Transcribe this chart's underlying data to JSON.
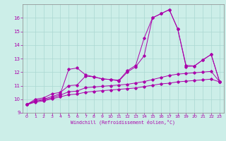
{
  "xlabel": "Windchill (Refroidissement éolien,°C)",
  "bg_color": "#cceee8",
  "grid_color": "#aad8d2",
  "line_color": "#aa00aa",
  "spine_color": "#888888",
  "xlim": [
    -0.5,
    23.5
  ],
  "ylim": [
    9,
    17.0
  ],
  "xticks": [
    0,
    1,
    2,
    3,
    4,
    5,
    6,
    7,
    8,
    9,
    10,
    11,
    12,
    13,
    14,
    15,
    16,
    17,
    18,
    19,
    20,
    21,
    22,
    23
  ],
  "yticks": [
    9,
    10,
    11,
    12,
    13,
    14,
    15,
    16
  ],
  "series1_x": [
    0,
    1,
    2,
    3,
    4,
    5,
    6,
    7,
    8,
    9,
    10,
    11,
    12,
    13,
    14,
    15,
    16,
    17,
    18,
    19,
    20,
    21,
    22,
    23
  ],
  "series1_y": [
    9.6,
    10.0,
    10.1,
    10.4,
    10.5,
    11.0,
    11.05,
    11.7,
    11.65,
    11.5,
    11.45,
    11.4,
    12.1,
    12.5,
    14.5,
    16.0,
    16.3,
    16.6,
    15.2,
    12.5,
    12.45,
    12.9,
    13.3,
    11.3
  ],
  "series2_x": [
    0,
    1,
    2,
    3,
    4,
    5,
    6,
    7,
    8,
    9,
    10,
    11,
    12,
    13,
    14,
    15,
    16,
    17,
    18,
    19,
    20,
    21,
    22,
    23
  ],
  "series2_y": [
    9.6,
    9.9,
    10.0,
    10.2,
    10.4,
    12.2,
    12.3,
    11.8,
    11.65,
    11.5,
    11.45,
    11.35,
    12.0,
    12.4,
    13.2,
    16.0,
    16.3,
    16.6,
    15.2,
    12.4,
    12.45,
    12.9,
    13.3,
    11.3
  ],
  "series3_x": [
    0,
    1,
    2,
    3,
    4,
    5,
    6,
    7,
    8,
    9,
    10,
    11,
    12,
    13,
    14,
    15,
    16,
    17,
    18,
    19,
    20,
    21,
    22,
    23
  ],
  "series3_y": [
    9.6,
    9.85,
    9.95,
    10.1,
    10.3,
    10.55,
    10.6,
    10.85,
    10.9,
    10.95,
    11.0,
    11.05,
    11.1,
    11.2,
    11.3,
    11.45,
    11.6,
    11.75,
    11.85,
    11.9,
    11.95,
    12.0,
    12.05,
    11.3
  ],
  "series4_x": [
    0,
    1,
    2,
    3,
    4,
    5,
    6,
    7,
    8,
    9,
    10,
    11,
    12,
    13,
    14,
    15,
    16,
    17,
    18,
    19,
    20,
    21,
    22,
    23
  ],
  "series4_y": [
    9.6,
    9.78,
    9.88,
    10.02,
    10.18,
    10.33,
    10.38,
    10.52,
    10.58,
    10.63,
    10.68,
    10.73,
    10.78,
    10.83,
    10.93,
    11.03,
    11.13,
    11.18,
    11.28,
    11.33,
    11.38,
    11.43,
    11.48,
    11.28
  ]
}
